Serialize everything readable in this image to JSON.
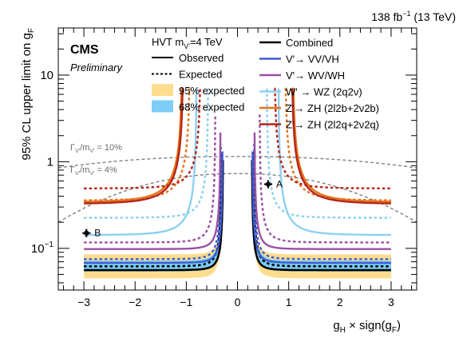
{
  "chart_data": {
    "type": "line",
    "header_right": {
      "lumi_value": "138 fb",
      "lumi_exp": "−1",
      "energy": " (13 TeV)"
    },
    "experiment": "CMS",
    "experiment_tag": "Preliminary",
    "xlabel": {
      "part1": "g",
      "sub1": "H",
      "part2": " × sign(g",
      "sub2": "F",
      "part3": ")"
    },
    "ylabel": {
      "text": "95% CL upper limit on g",
      "sub": "F"
    },
    "xlim": [
      -3.5,
      3.5
    ],
    "ylim": [
      0.033,
      35
    ],
    "yscale": "log",
    "x_ticks": [
      {
        "value": -3,
        "label": "−3"
      },
      {
        "value": -2,
        "label": "−2"
      },
      {
        "value": -1,
        "label": "−1"
      },
      {
        "value": 0,
        "label": "0"
      },
      {
        "value": 1,
        "label": "1"
      },
      {
        "value": 2,
        "label": "2"
      },
      {
        "value": 3,
        "label": "3"
      }
    ],
    "y_ticks": [
      {
        "value": 0.1,
        "base": "10",
        "exp": "−1"
      },
      {
        "value": 1,
        "base": "1",
        "exp": ""
      },
      {
        "value": 10,
        "base": "10",
        "exp": ""
      }
    ],
    "legend": {
      "model": {
        "text": "HVT m",
        "sub": "V'",
        "rest": "=4 TeV"
      },
      "left": [
        {
          "style": "solid",
          "label": "Observed"
        },
        {
          "style": "dashed",
          "label": "Expected"
        },
        {
          "style": "band95",
          "label": "95% expected"
        },
        {
          "style": "band68",
          "label": "68% expected"
        }
      ],
      "right": [
        {
          "series": "combined",
          "label": "Combined"
        },
        {
          "series": "vv_vh",
          "label": "V'→ VV/VH"
        },
        {
          "series": "wv_wh",
          "label": "V'→ WV/WH"
        },
        {
          "series": "wz_2q2v",
          "label": "W' → WZ (2q2ν)"
        },
        {
          "series": "zh_2l2b",
          "label": "Z'→ ZH (2l2b+2ν2b)"
        },
        {
          "series": "zh_2l2q",
          "label": "Z'→ ZH (2l2q+2ν2q)"
        }
      ]
    },
    "colors": {
      "band95": "#fddd8d",
      "band68": "#7ccdf5",
      "combined": "#000000",
      "vv_vh": "#3d5cd6",
      "wv_wh": "#9b4fa3",
      "wz_2q2v": "#8dd0f0",
      "zh_2l2b": "#e5731a",
      "zh_2l2q": "#b52519",
      "width_line": "#808080"
    },
    "width_contours": [
      {
        "label": "Γ",
        "sub1": "V'",
        "mid": "/m",
        "sub2": "V'",
        "value": " = 10%",
        "y_center": 1.15,
        "y_edge": 0.85
      },
      {
        "label": "Γ",
        "sub1": "V'",
        "mid": "/m",
        "sub2": "V'",
        "value": " = 4%",
        "y_center": 0.73,
        "y_edge": 0.2
      }
    ],
    "points": [
      {
        "name": "A",
        "x": 0.6,
        "y": 0.55
      },
      {
        "name": "B",
        "x": -2.95,
        "y": 0.15
      }
    ],
    "series": [
      {
        "name": "Combined",
        "key": "combined",
        "kind": "observed",
        "vert": 0.28,
        "plateau": 0.056
      },
      {
        "name": "Combined",
        "key": "combined",
        "kind": "expected",
        "vert": 0.31,
        "plateau": 0.062,
        "band68": [
          0.054,
          0.072
        ],
        "band95": [
          0.045,
          0.085
        ]
      },
      {
        "name": "V'→ VV/VH",
        "key": "vv_vh",
        "kind": "observed",
        "vert": 0.29,
        "plateau": 0.068
      },
      {
        "name": "V'→ VV/VH",
        "key": "vv_vh",
        "kind": "expected",
        "vert": 0.32,
        "plateau": 0.075
      },
      {
        "name": "V'→ WV/WH",
        "key": "wv_wh",
        "kind": "observed",
        "vert": 0.33,
        "plateau": 0.098
      },
      {
        "name": "V'→ WV/WH",
        "key": "wv_wh",
        "kind": "expected",
        "vert": 0.43,
        "plateau": 0.117
      },
      {
        "name": "W' → WZ (2q2ν)",
        "key": "wz_2q2v",
        "kind": "observed",
        "vert": 0.8,
        "plateau": 0.142
      },
      {
        "name": "W' → WZ (2q2ν)",
        "key": "wz_2q2v",
        "kind": "expected",
        "vert": 0.57,
        "plateau": 0.225
      },
      {
        "name": "Z'→ ZH (2l2b+2ν2b)",
        "key": "zh_2l2b",
        "kind": "observed",
        "vert": 1.08,
        "plateau": 0.34
      },
      {
        "name": "Z'→ ZH (2l2b+2ν2b)",
        "key": "zh_2l2b",
        "kind": "expected",
        "vert": 0.93,
        "plateau": 0.355
      },
      {
        "name": "Z'→ ZH (2l2q+2ν2q)",
        "key": "zh_2l2q",
        "kind": "observed",
        "vert": 1.06,
        "plateau": 0.325
      },
      {
        "name": "Z'→ ZH (2l2q+2ν2q)",
        "key": "zh_2l2q",
        "kind": "expected",
        "vert": 0.72,
        "plateau": 0.49
      }
    ]
  }
}
